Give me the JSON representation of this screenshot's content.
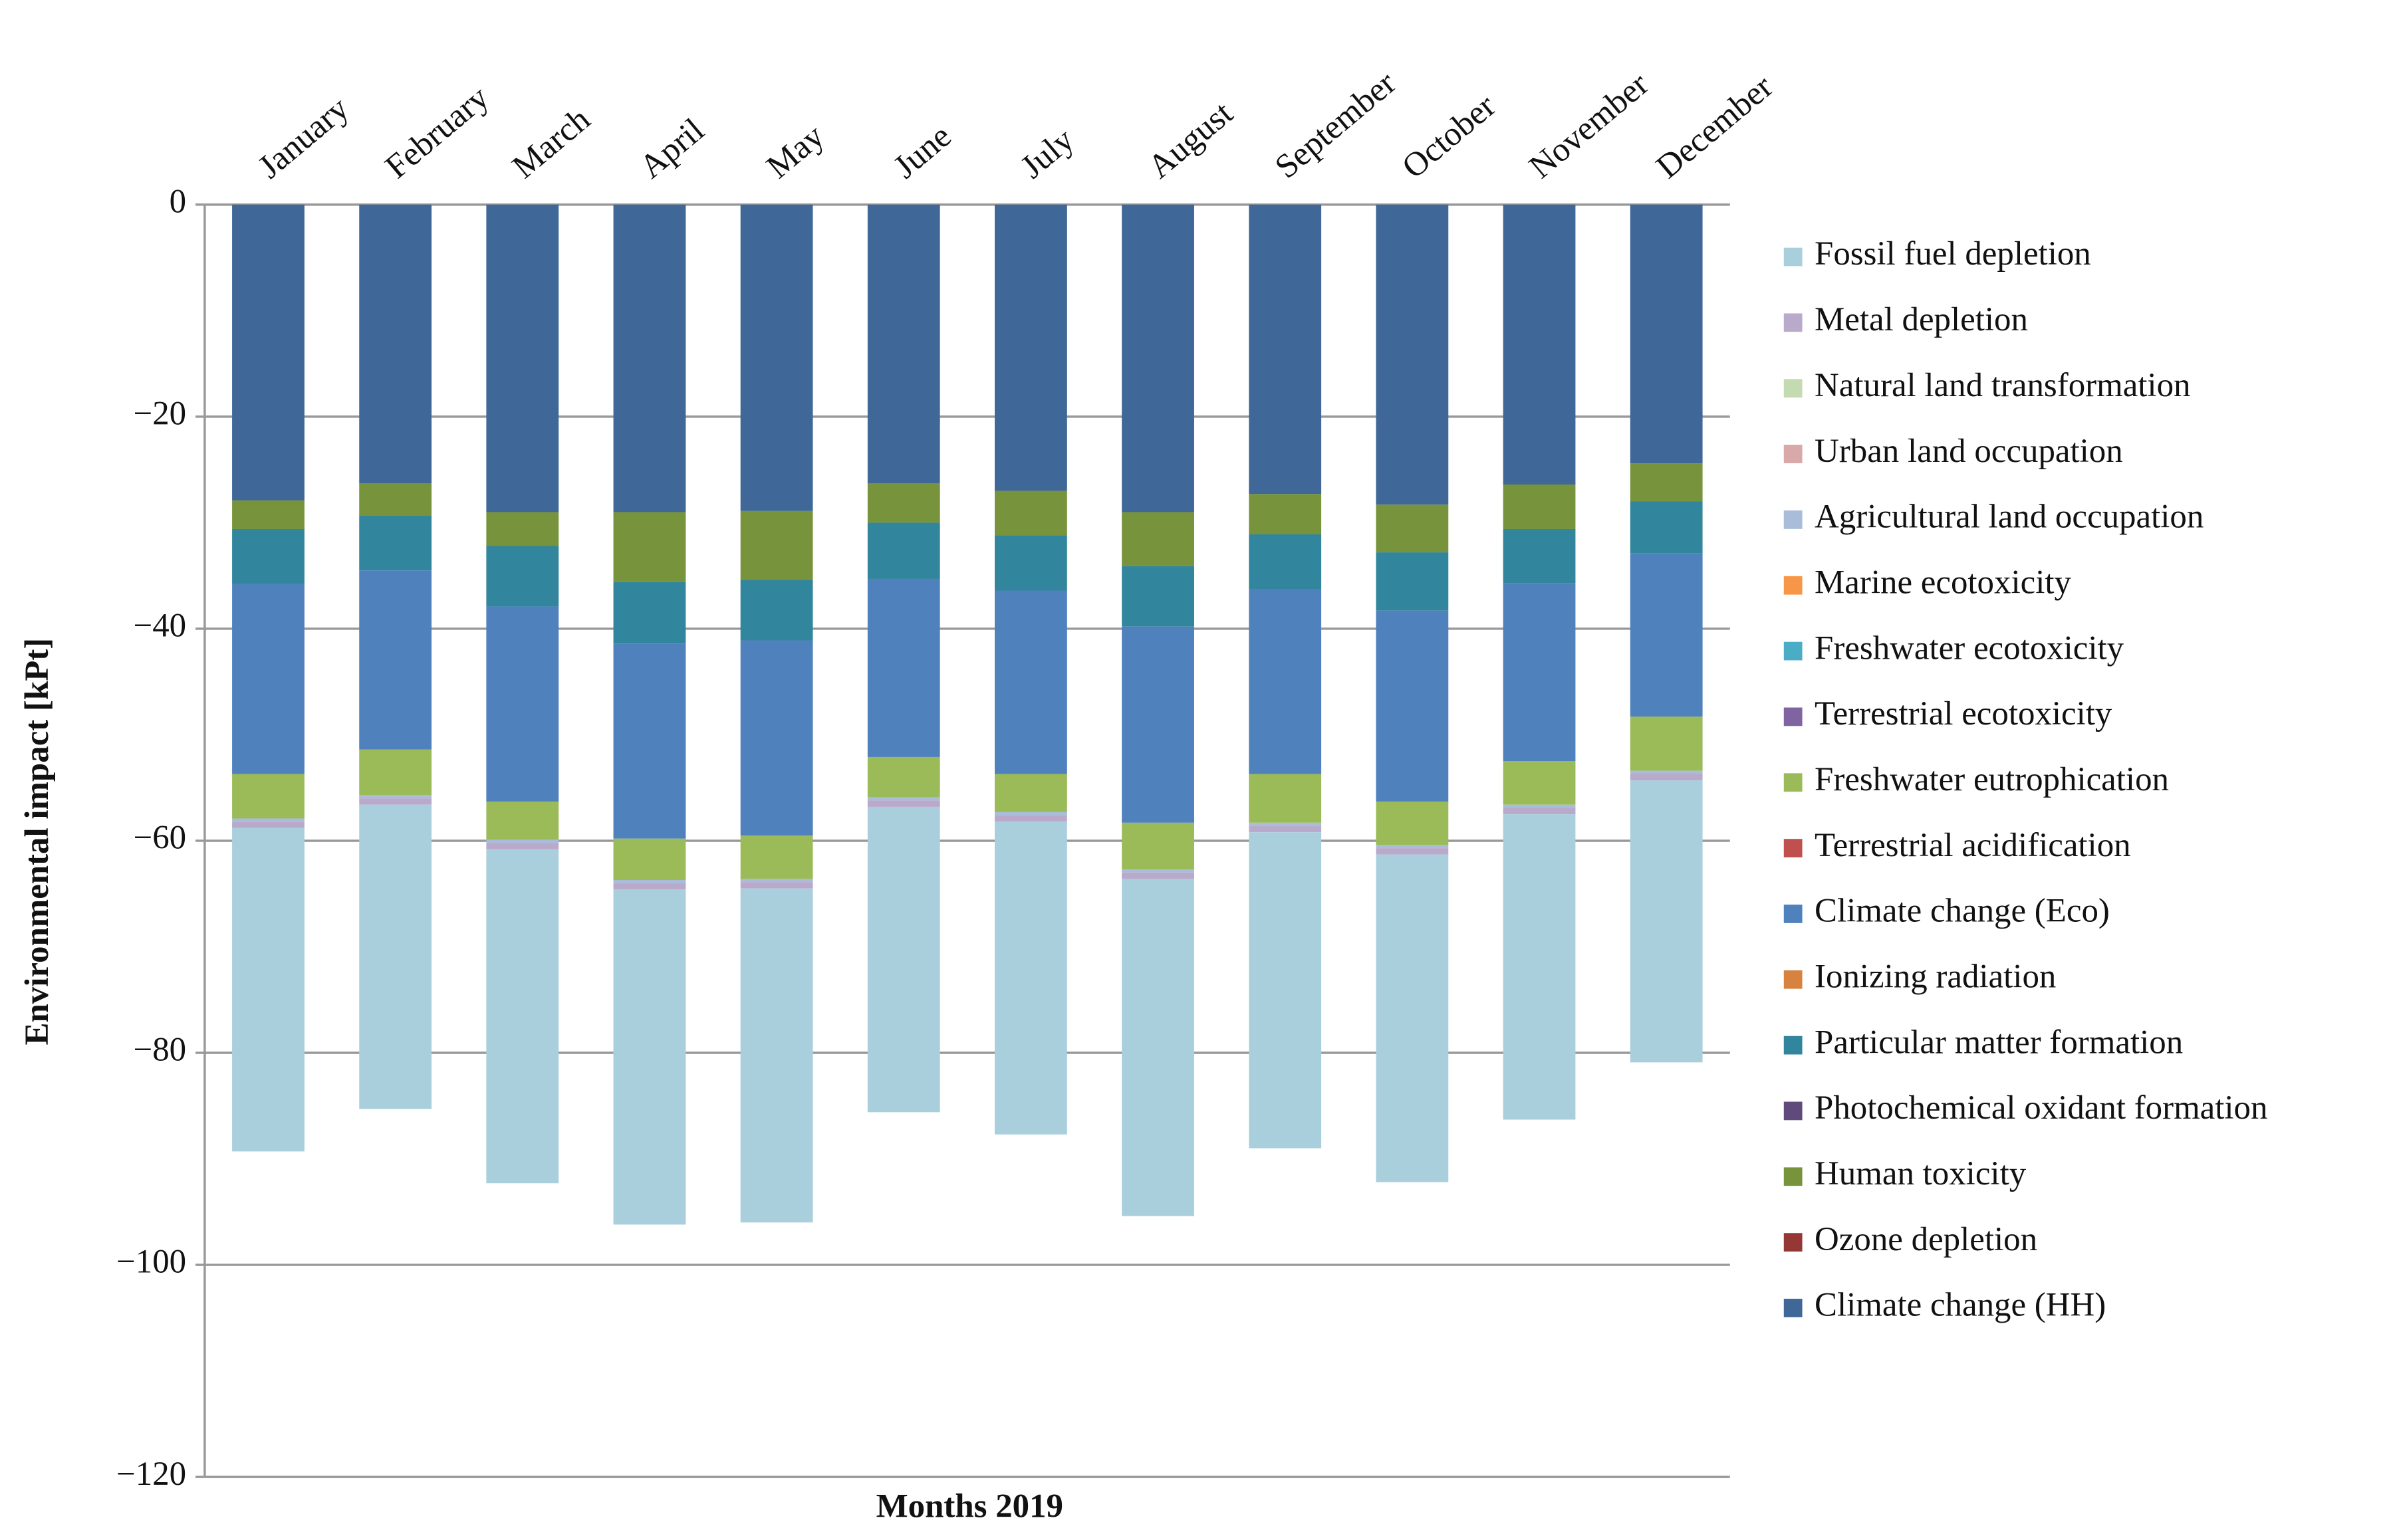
{
  "chart_data": {
    "type": "stacked-bar",
    "x_label": "Months 2019",
    "y_label": "Environmental impact [kPt]",
    "categories": [
      "January",
      "February",
      "March",
      "April",
      "May",
      "June",
      "July",
      "August",
      "September",
      "October",
      "November",
      "December"
    ],
    "ylim": [
      -120,
      0
    ],
    "yticks": [
      0,
      {
        "value": -20,
        "label": "−20"
      },
      {
        "value": -40,
        "label": "−40"
      },
      {
        "value": -60,
        "label": "−60"
      },
      {
        "value": -80,
        "label": "−80"
      },
      {
        "value": -100,
        "label": "−100"
      },
      {
        "value": -120,
        "label": "−120"
      }
    ],
    "grid": true,
    "legend": "right",
    "series": [
      {
        "name": "Fossil fuel depletion",
        "color": "#aacfdc",
        "values": [
          -30.5,
          -28.7,
          -31.5,
          -31.6,
          -31.5,
          -28.8,
          -29.5,
          -31.8,
          -29.8,
          -30.9,
          -28.8,
          -26.6
        ]
      },
      {
        "name": "Metal depletion",
        "color": "#b9a9cb",
        "values": [
          -0.6,
          -0.6,
          -0.6,
          -0.6,
          -0.6,
          -0.6,
          -0.6,
          -0.6,
          -0.6,
          -0.6,
          -0.6,
          -0.6
        ]
      },
      {
        "name": "Natural land transformation",
        "color": "#c4dab0",
        "values": [
          0,
          0,
          0,
          0,
          0,
          0,
          0,
          0,
          0,
          0,
          0,
          0
        ]
      },
      {
        "name": "Urban land occupation",
        "color": "#d8a9a8",
        "values": [
          0,
          0,
          0,
          0,
          0,
          0,
          0,
          0,
          0,
          0,
          0,
          0
        ]
      },
      {
        "name": "Agricultural land occupation",
        "color": "#a9bcd9",
        "values": [
          -0.3,
          -0.3,
          -0.3,
          -0.3,
          -0.3,
          -0.3,
          -0.3,
          -0.3,
          -0.3,
          -0.3,
          -0.3,
          -0.3
        ]
      },
      {
        "name": "Marine ecotoxicity",
        "color": "#f79646",
        "values": [
          0,
          0,
          0,
          0,
          0,
          0,
          0,
          0,
          0,
          0,
          0,
          0
        ]
      },
      {
        "name": "Freshwater ecotoxicity",
        "color": "#4bacc6",
        "values": [
          0,
          0,
          0,
          0,
          0,
          0,
          0,
          0,
          0,
          0,
          0,
          0
        ]
      },
      {
        "name": "Terrestrial ecotoxicity",
        "color": "#8064a2",
        "values": [
          0,
          0,
          0,
          0,
          0,
          0,
          0,
          0,
          0,
          0,
          0,
          0
        ]
      },
      {
        "name": "Freshwater eutrophication",
        "color": "#9bbb59",
        "values": [
          -4.2,
          -4.3,
          -3.6,
          -3.9,
          -4.1,
          -3.8,
          -3.6,
          -4.4,
          -4.6,
          -4.1,
          -4.1,
          -5.1
        ]
      },
      {
        "name": "Terrestrial acidification",
        "color": "#c0504d",
        "values": [
          0,
          0,
          0,
          0,
          0,
          0,
          0,
          0,
          0,
          0,
          0,
          0
        ]
      },
      {
        "name": "Climate change (Eco)",
        "color": "#4f81bd",
        "values": [
          -17.9,
          -16.9,
          -18.4,
          -18.4,
          -18.4,
          -16.8,
          -17.3,
          -18.5,
          -17.4,
          -18.0,
          -16.8,
          -15.4
        ]
      },
      {
        "name": "Ionizing radiation",
        "color": "#d8823f",
        "values": [
          0,
          0,
          0,
          0,
          0,
          0,
          0,
          0,
          0,
          0,
          0,
          0
        ]
      },
      {
        "name": "Particular matter formation",
        "color": "#31859c",
        "values": [
          -5.2,
          -5.2,
          -5.7,
          -5.8,
          -5.7,
          -5.3,
          -5.2,
          -5.7,
          -5.2,
          -5.5,
          -5.1,
          -4.9
        ]
      },
      {
        "name": "Photochemical oxidant formation",
        "color": "#604a7b",
        "values": [
          0,
          0,
          0,
          0,
          0,
          0,
          0,
          0,
          0,
          0,
          0,
          0
        ]
      },
      {
        "name": "Human toxicity",
        "color": "#77933c",
        "values": [
          -2.7,
          -3.0,
          -3.2,
          -6.6,
          -6.5,
          -3.7,
          -4.2,
          -5.1,
          -3.8,
          -4.5,
          -4.2,
          -3.6
        ]
      },
      {
        "name": "Ozone depletion",
        "color": "#953735",
        "values": [
          0,
          0,
          0,
          0,
          0,
          0,
          0,
          0,
          0,
          0,
          0,
          0
        ]
      },
      {
        "name": "Climate change (HH)",
        "color": "#3f6797",
        "values": [
          -27.9,
          -26.3,
          -29.0,
          -29.0,
          -28.9,
          -26.3,
          -27.0,
          -29.0,
          -27.3,
          -28.3,
          -26.4,
          -24.4
        ]
      }
    ]
  }
}
